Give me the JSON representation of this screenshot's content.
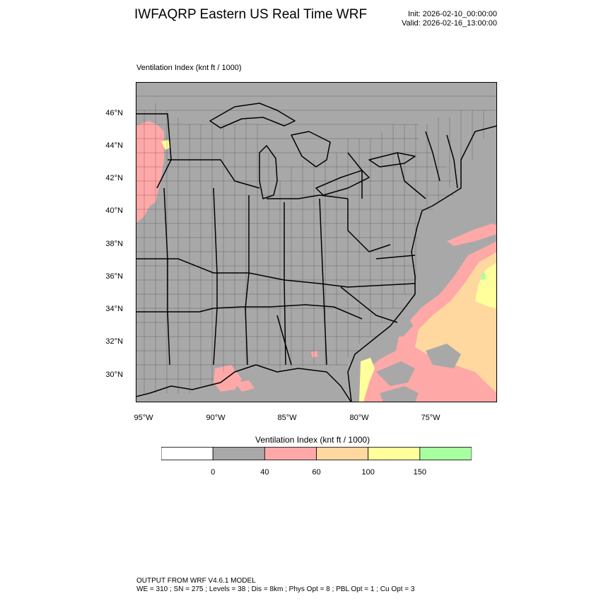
{
  "header": {
    "title": "IWFAQRP Eastern US Real Time WRF",
    "init": "Init: 2026-02-10_00:00:00",
    "valid": "Valid: 2026-02-16_13:00:00"
  },
  "plot": {
    "variable_label": "Ventilation Index   (knt ft / 1000)",
    "lat_ticks": [
      "46°N",
      "44°N",
      "42°N",
      "40°N",
      "38°N",
      "36°N",
      "34°N",
      "32°N",
      "30°N"
    ],
    "lon_ticks": [
      "95°W",
      "90°W",
      "85°W",
      "80°W",
      "75°W"
    ],
    "land_color": "#a8a8a8",
    "boundary_color": "#000000"
  },
  "colorbar": {
    "title": "Ventilation Index  (knt ft / 1000)",
    "boundaries": [
      "0",
      "40",
      "60",
      "100",
      "150"
    ],
    "colors": [
      "#ffffff",
      "#a8a8a8",
      "#ffa8a8",
      "#ffd8a0",
      "#ffff9c",
      "#a8ffa0"
    ]
  },
  "footer": {
    "line1": "OUTPUT FROM WRF V4.6.1 MODEL",
    "line2": "WE = 310 ; SN = 275 ; Levels = 38 ; Dis = 8km ; Phys Opt = 8 ; PBL Opt = 1 ; Cu Opt = 3"
  }
}
